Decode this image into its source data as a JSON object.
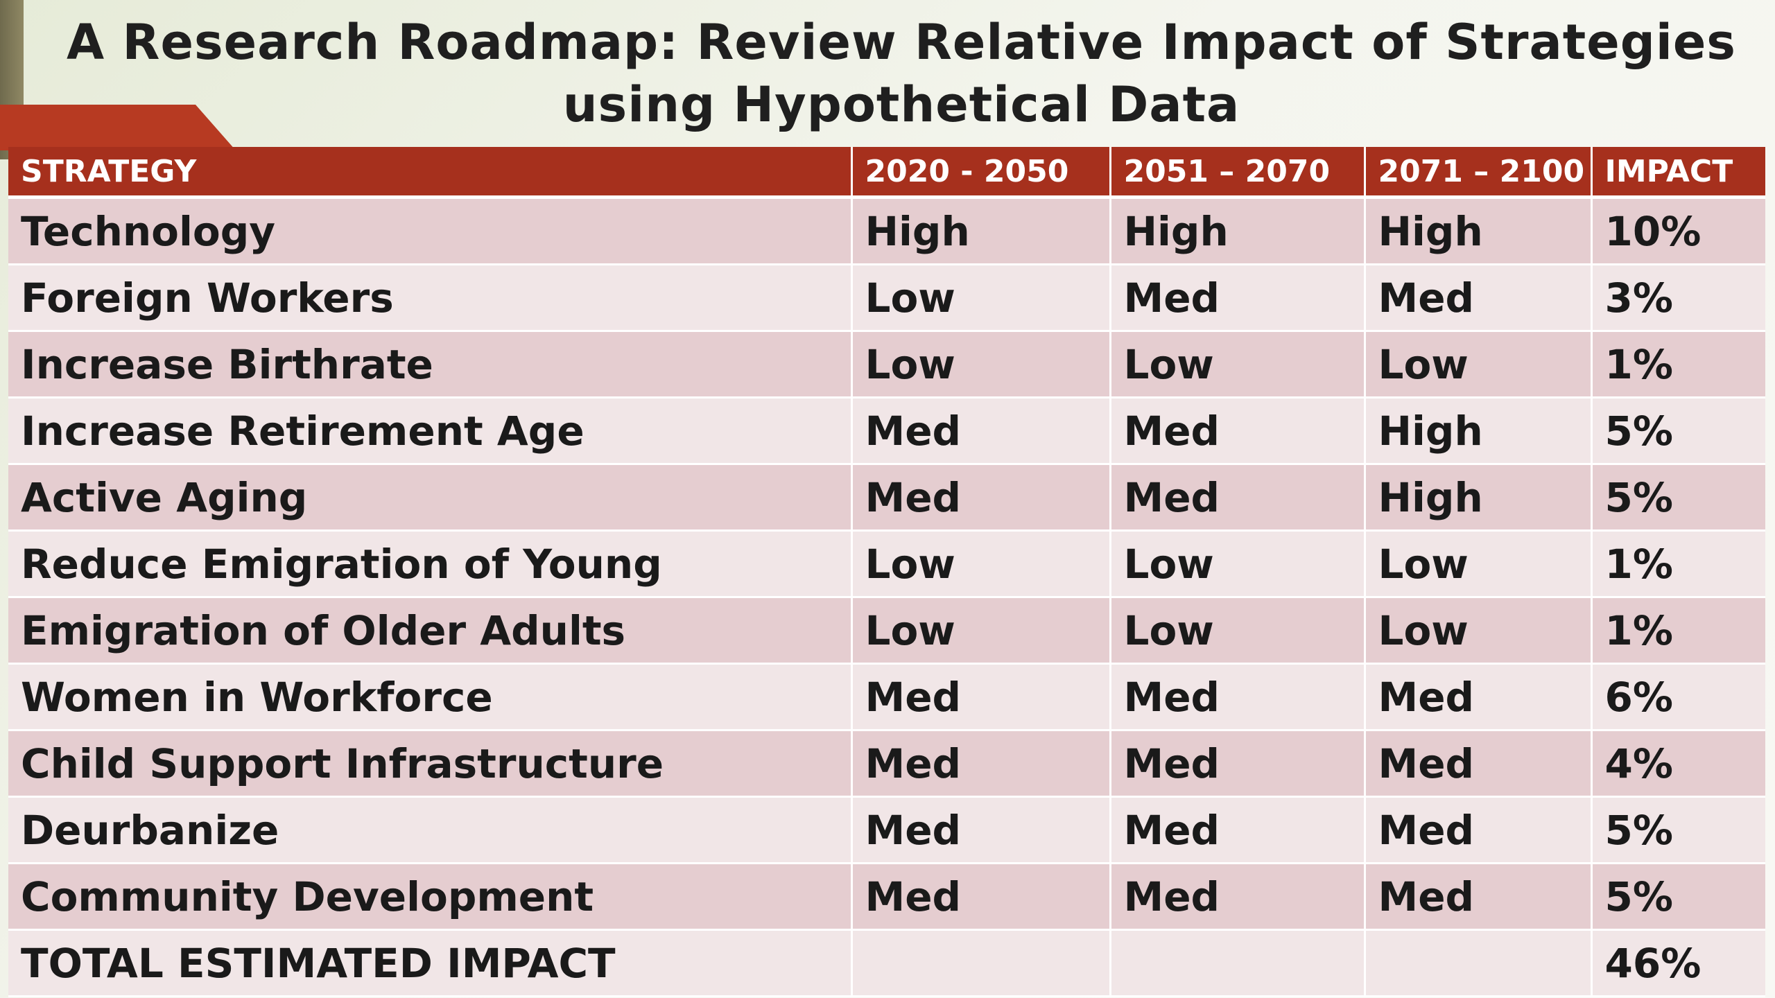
{
  "title": {
    "line1": "A Research Roadmap: Review Relative Impact of Strategies",
    "line2": "using Hypothetical Data"
  },
  "table": {
    "headers": [
      "STRATEGY",
      "2020  - 2050",
      "2051 – 2070",
      "2071 – 2100",
      "IMPACT"
    ],
    "rows": [
      [
        "Technology",
        "High",
        "High",
        "High",
        "10%"
      ],
      [
        "Foreign Workers",
        "Low",
        "Med",
        "Med",
        "3%"
      ],
      [
        "Increase Birthrate",
        "Low",
        "Low",
        "Low",
        "1%"
      ],
      [
        "Increase Retirement Age",
        "Med",
        "Med",
        "High",
        "5%"
      ],
      [
        "Active Aging",
        "Med",
        "Med",
        "High",
        "5%"
      ],
      [
        "Reduce Emigration of Young",
        "Low",
        "Low",
        "Low",
        "1%"
      ],
      [
        "Emigration of Older Adults",
        "Low",
        "Low",
        "Low",
        "1%"
      ],
      [
        "Women in Workforce",
        "Med",
        "Med",
        "Med",
        "6%"
      ],
      [
        "Child Support Infrastructure",
        "Med",
        "Med",
        "Med",
        "4%"
      ],
      [
        "Deurbanize",
        "Med",
        "Med",
        "Med",
        "5%"
      ],
      [
        "Community Development",
        "Med",
        "Med",
        "Med",
        "5%"
      ]
    ],
    "total": {
      "label": "TOTAL ESTIMATED IMPACT",
      "value": "46%"
    }
  },
  "colors": {
    "header_bg": "#a6301d",
    "row_odd": "#e5cdd0",
    "row_even": "#f1e6e7",
    "accent_tab": "#b73a22"
  }
}
